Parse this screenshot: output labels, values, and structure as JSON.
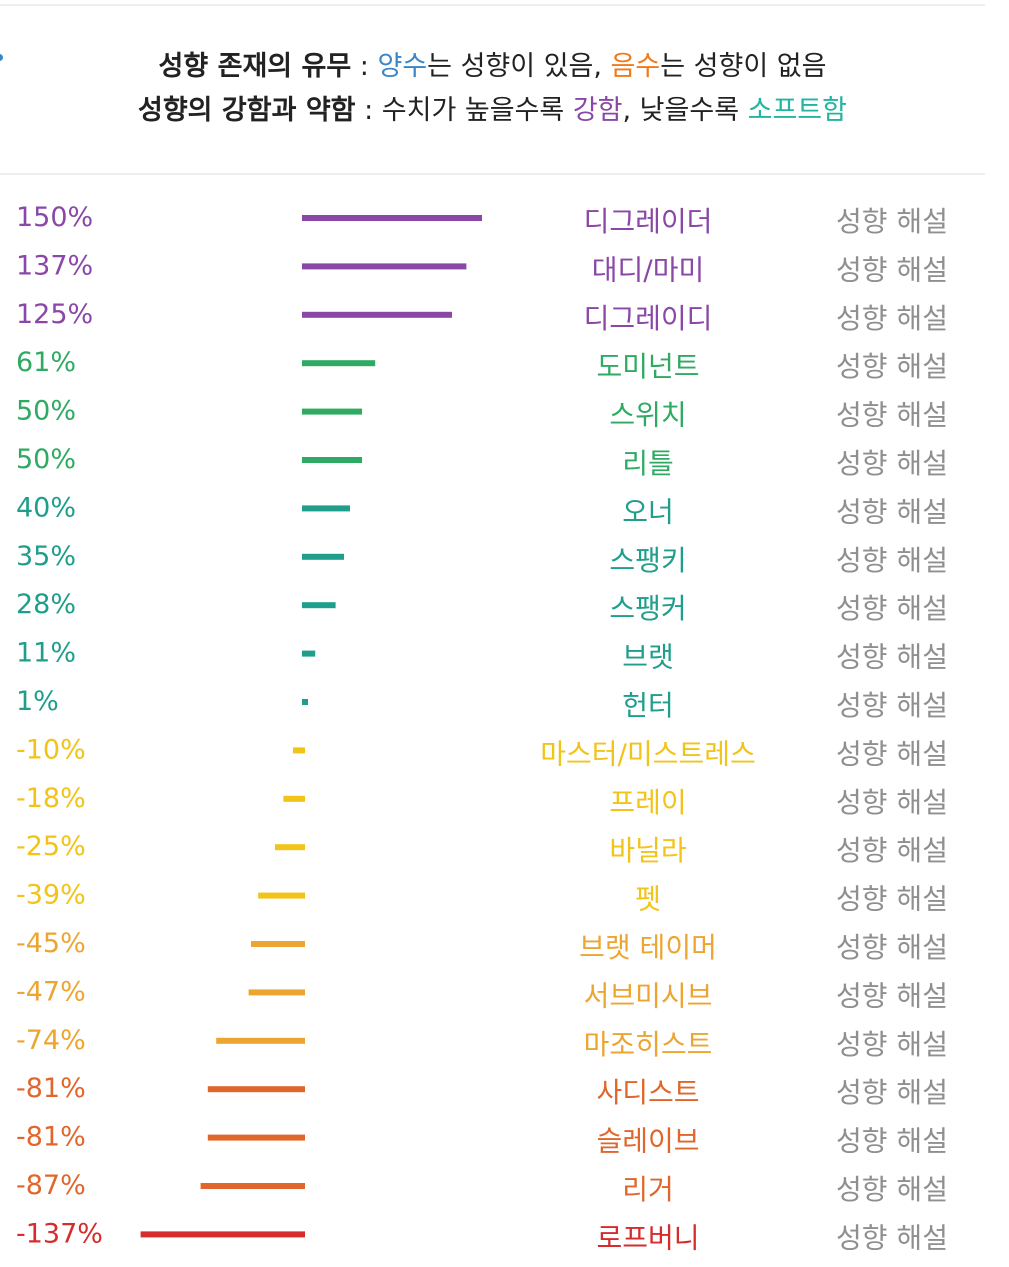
{
  "legend": {
    "line1": {
      "bold": "성향 존재의 유무",
      "sep": " : ",
      "pos": "양수",
      "t1": "는 성향이 있음, ",
      "neg": "음수",
      "t2": "는 성향이 없음"
    },
    "line2": {
      "bold": "성향의 강함과 약함",
      "sep": " : ",
      "t1": "수치가 높을수록 ",
      "strong": "강함",
      "t2": ", 낮을수록 ",
      "soft": "소프트함"
    }
  },
  "chart_data": {
    "type": "bar",
    "orientation": "horizontal",
    "categories": [
      "디그레이더",
      "대디/마미",
      "디그레이디",
      "도미넌트",
      "스위치",
      "리틀",
      "오너",
      "스팽키",
      "스팽커",
      "브랫",
      "헌터",
      "마스터/미스트레스",
      "프레이",
      "바닐라",
      "펫",
      "브랫 테이머",
      "서브미시브",
      "마조히스트",
      "사디스트",
      "슬레이브",
      "리거",
      "로프버니"
    ],
    "values": [
      150,
      137,
      125,
      61,
      50,
      50,
      40,
      35,
      28,
      11,
      1,
      -10,
      -18,
      -25,
      -39,
      -45,
      -47,
      -74,
      -81,
      -81,
      -87,
      -137
    ],
    "value_labels": [
      "150%",
      "137%",
      "125%",
      "61%",
      "50%",
      "50%",
      "40%",
      "35%",
      "28%",
      "11%",
      "1%",
      "-10%",
      "-18%",
      "-25%",
      "-39%",
      "-45%",
      "-47%",
      "-74%",
      "-81%",
      "-81%",
      "-87%",
      "-137%"
    ],
    "colors": [
      "#8a47a8",
      "#8a47a8",
      "#8a47a8",
      "#2eaa62",
      "#2eaa62",
      "#2eaa62",
      "#1f9e8c",
      "#1f9e8c",
      "#1f9e8c",
      "#1f9e8c",
      "#1f9e8c",
      "#f2c318",
      "#f2c318",
      "#f2c318",
      "#f2c318",
      "#eda532",
      "#eda532",
      "#eda532",
      "#e0662c",
      "#e0662c",
      "#e0662c",
      "#d62c2c"
    ],
    "link_label": "성향 해설",
    "link_color": "#8f8f8f"
  }
}
